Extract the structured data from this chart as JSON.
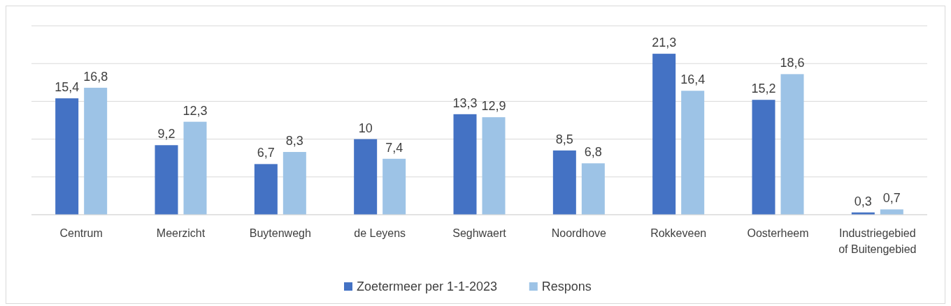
{
  "chart_data": {
    "type": "bar",
    "categories": [
      "Centrum",
      "Meerzicht",
      "Buytenwegh",
      "de Leyens",
      "Seghwaert",
      "Noordhove",
      "Rokkeveen",
      "Oosterheem",
      "Industriegebied of Buitengebied"
    ],
    "series": [
      {
        "name": "Zoetermeer per 1-1-2023",
        "color": "#4472c4",
        "values": [
          15.4,
          9.2,
          6.7,
          10,
          13.3,
          8.5,
          21.3,
          15.2,
          0.3
        ],
        "value_labels": [
          "15,4",
          "9,2",
          "6,7",
          "10",
          "13,3",
          "8,5",
          "21,3",
          "15,2",
          "0,3"
        ]
      },
      {
        "name": "Respons",
        "color": "#9dc3e6",
        "values": [
          16.8,
          12.3,
          8.3,
          7.4,
          12.9,
          6.8,
          16.4,
          18.6,
          0.7
        ],
        "value_labels": [
          "16,8",
          "12,3",
          "8,3",
          "7,4",
          "12,9",
          "6,8",
          "16,4",
          "18,6",
          "0,7"
        ]
      }
    ],
    "ylim": [
      0,
      25
    ],
    "yticks": [
      {
        "value": 0,
        "label": null
      },
      {
        "value": 5,
        "label": null
      },
      {
        "value": 10,
        "label": null
      },
      {
        "value": 15,
        "label": null
      },
      {
        "value": 20,
        "label": null
      },
      {
        "value": 25,
        "label": null
      }
    ],
    "tick_labels": "x",
    "grid": "y",
    "legend": "bottom"
  }
}
